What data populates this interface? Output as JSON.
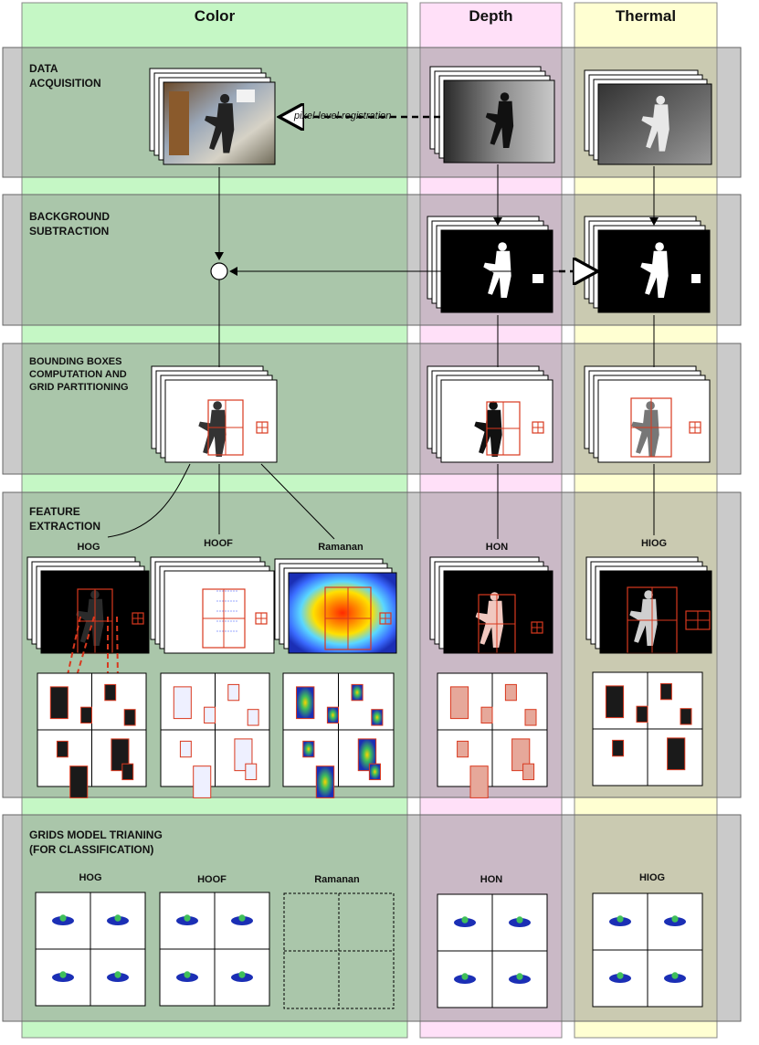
{
  "columns": {
    "color": "Color",
    "depth": "Depth",
    "thermal": "Thermal"
  },
  "stages": {
    "data_acquisition": "DATA\nACQUISITION",
    "background_subtraction": "BACKGROUND\nSUBTRACTION",
    "bounding_boxes": "BOUNDING BOXES\nCOMPUTATION AND\nGRID PARTITIONING",
    "feature_extraction": "FEATURE\nEXTRACTION",
    "grids_model_training": "GRIDS MODEL TRIANING\n(FOR CLASSIFICATION)"
  },
  "annotations": {
    "registration": "pixel-level registration"
  },
  "feature_methods": {
    "hog": "HOG",
    "hoof": "HOOF",
    "ramanan": "Ramanan",
    "hon": "HON",
    "hiog": "HIOG"
  },
  "training_methods": {
    "hog": "HOG",
    "hoof": "HOOF",
    "ramanan": "Ramanan",
    "hon": "HON",
    "hiog": "HIOG"
  },
  "colors": {
    "color_column": "#c5f7c5",
    "depth_column": "#ffe0f8",
    "thermal_column": "#ffffd2",
    "stage_band": "#8a8a8a",
    "bounding_box": "#d9381e",
    "heatmap_blue": "#1b2fb5"
  }
}
